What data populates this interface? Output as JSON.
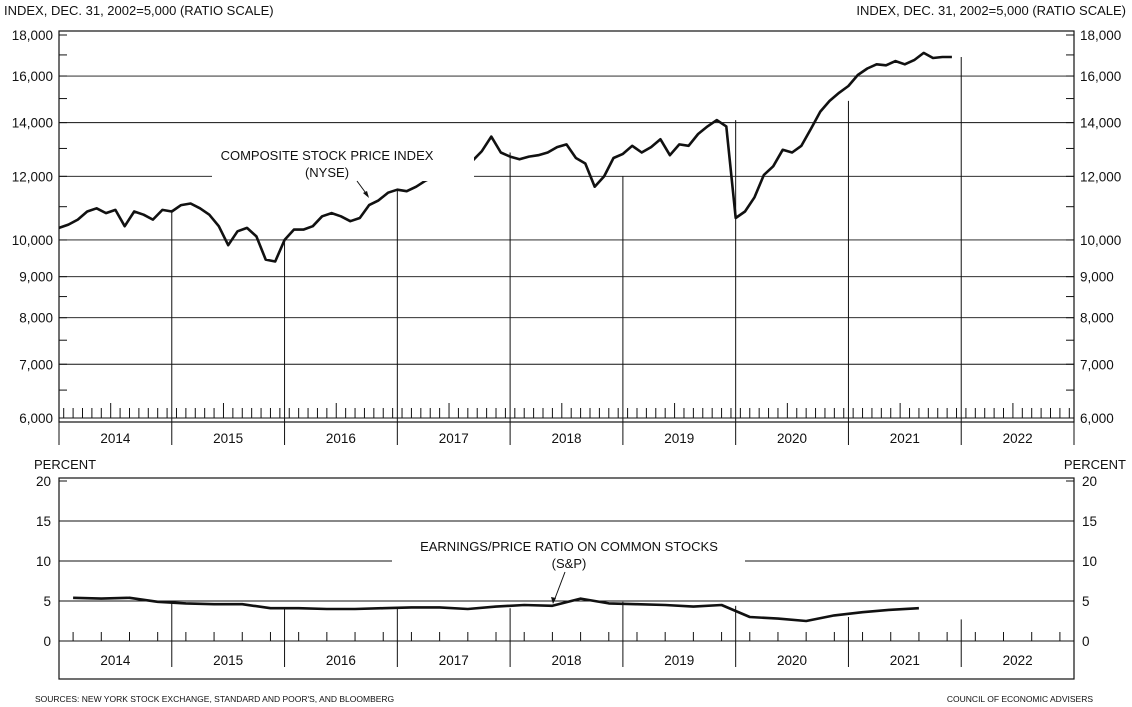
{
  "chart_data": [
    {
      "type": "line",
      "annotation_line1": "COMPOSITE STOCK PRICE INDEX",
      "annotation_line2": "(NYSE)",
      "ylabel_left": "INDEX, DEC. 31, 2002=5,000 (RATIO SCALE)",
      "ylabel_right": "INDEX, DEC. 31, 2002=5,000 (RATIO SCALE)",
      "y_scale": "log",
      "ylim": [
        6000,
        18000
      ],
      "yticks_labeled": [
        6000,
        7000,
        8000,
        9000,
        10000,
        12000,
        14000,
        16000,
        18000
      ],
      "ytick_labels": [
        "6,000",
        "7,000",
        "8,000",
        "9,000",
        "10,000",
        "12,000",
        "14,000",
        "16,000",
        "18,000"
      ],
      "yticks_minor": [
        6500,
        7500,
        8500,
        11000,
        13000,
        15000,
        17000
      ],
      "x_categories": [
        "2014",
        "2015",
        "2016",
        "2017",
        "2018",
        "2019",
        "2020",
        "2021",
        "2022"
      ],
      "xlim": [
        2014.0,
        2023.0
      ],
      "grid": true,
      "series": [
        {
          "x": [
            2014.0,
            2014.083,
            2014.167,
            2014.25,
            2014.333,
            2014.417,
            2014.5,
            2014.583,
            2014.667,
            2014.75,
            2014.833,
            2014.917,
            2015.0,
            2015.083,
            2015.167,
            2015.25,
            2015.333,
            2015.417,
            2015.5,
            2015.583,
            2015.667,
            2015.75,
            2015.833,
            2015.917,
            2016.0,
            2016.083,
            2016.167,
            2016.25,
            2016.333,
            2016.417,
            2016.5,
            2016.583,
            2016.667,
            2016.75,
            2016.833,
            2016.917,
            2017.0,
            2017.083,
            2017.167,
            2017.25,
            2017.333,
            2017.417,
            2017.5,
            2017.583,
            2017.667,
            2017.75,
            2017.833,
            2017.917,
            2018.0,
            2018.083,
            2018.167,
            2018.25,
            2018.333,
            2018.417,
            2018.5,
            2018.583,
            2018.667,
            2018.75,
            2018.833,
            2018.917,
            2019.0,
            2019.083,
            2019.167,
            2019.25,
            2019.333,
            2019.417,
            2019.5,
            2019.583,
            2019.667,
            2019.75,
            2019.833,
            2019.917,
            2020.0,
            2020.083,
            2020.167,
            2020.25,
            2020.333,
            2020.417,
            2020.5,
            2020.583,
            2020.667,
            2020.75,
            2020.833,
            2020.917,
            2021.0,
            2021.083,
            2021.167,
            2021.25,
            2021.333,
            2021.417,
            2021.5,
            2021.583,
            2021.667,
            2021.75,
            2021.833,
            2021.917
          ],
          "values": [
            10350,
            10450,
            10600,
            10850,
            10950,
            10800,
            10900,
            10400,
            10850,
            10750,
            10600,
            10900,
            10850,
            11050,
            11100,
            10950,
            10750,
            10400,
            9850,
            10250,
            10350,
            10100,
            9450,
            9400,
            10000,
            10300,
            10300,
            10400,
            10700,
            10800,
            10700,
            10550,
            10650,
            11050,
            11200,
            11450,
            11550,
            11500,
            11650,
            11850,
            12000,
            11950,
            12200,
            12500,
            12550,
            12900,
            13450,
            12850,
            12700,
            12600,
            12700,
            12750,
            12850,
            13050,
            13150,
            12650,
            12450,
            11650,
            12000,
            12650,
            12800,
            13100,
            12850,
            13050,
            13350,
            12750,
            13150,
            13100,
            13550,
            13850,
            14100,
            13850,
            10650,
            10850,
            11300,
            12050,
            12350,
            12950,
            12850,
            13100,
            13750,
            14450,
            14900,
            15250,
            15550,
            16050,
            16350,
            16550,
            16500,
            16700,
            16550,
            16750,
            17100,
            16850,
            16900,
            16900
          ]
        }
      ]
    },
    {
      "type": "line",
      "annotation_line1": "EARNINGS/PRICE RATIO ON COMMON STOCKS",
      "annotation_line2": "(S&P)",
      "ylabel_left": "PERCENT",
      "ylabel_right": "PERCENT",
      "ylim": [
        0,
        20
      ],
      "yticks": [
        0,
        5,
        10,
        15,
        20
      ],
      "x_categories": [
        "2014",
        "2015",
        "2016",
        "2017",
        "2018",
        "2019",
        "2020",
        "2021",
        "2022"
      ],
      "xlim": [
        2014.0,
        2023.0
      ],
      "grid": true,
      "series": [
        {
          "x": [
            2014.125,
            2014.375,
            2014.625,
            2014.875,
            2015.125,
            2015.375,
            2015.625,
            2015.875,
            2016.125,
            2016.375,
            2016.625,
            2016.875,
            2017.125,
            2017.375,
            2017.625,
            2017.875,
            2018.125,
            2018.375,
            2018.625,
            2018.875,
            2019.125,
            2019.375,
            2019.625,
            2019.875,
            2020.125,
            2020.375,
            2020.625,
            2020.875,
            2021.125,
            2021.375,
            2021.625
          ],
          "values": [
            5.4,
            5.3,
            5.4,
            4.9,
            4.7,
            4.6,
            4.6,
            4.1,
            4.1,
            4.0,
            4.0,
            4.1,
            4.2,
            4.2,
            4.0,
            4.3,
            4.5,
            4.4,
            5.3,
            4.7,
            4.6,
            4.5,
            4.3,
            4.5,
            3.0,
            2.8,
            2.5,
            3.2,
            3.6,
            3.9,
            4.1
          ]
        }
      ]
    }
  ],
  "footer": {
    "sources": "SOURCES: NEW YORK STOCK EXCHANGE, STANDARD AND POOR'S, AND BLOOMBERG",
    "credit": "COUNCIL OF ECONOMIC ADVISERS"
  }
}
